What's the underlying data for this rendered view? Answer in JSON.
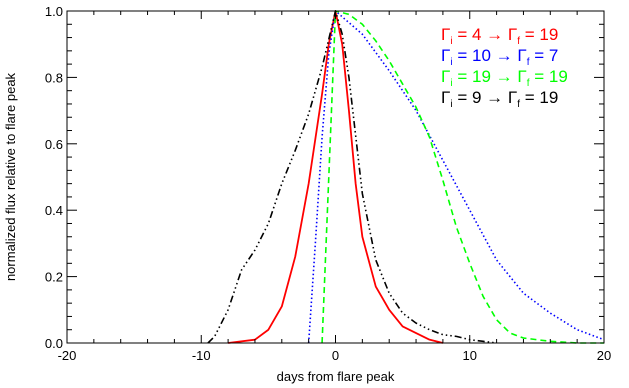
{
  "chart_data": {
    "type": "line",
    "title": "",
    "xlabel": "days from flare peak",
    "ylabel": "normalized flux relative to flare peak",
    "xlim": [
      -20,
      20
    ],
    "ylim": [
      0,
      1.0
    ],
    "x_ticks": [
      -20,
      -10,
      0,
      10,
      20
    ],
    "x_tick_labels": [
      "-20",
      "-10",
      "0",
      "10",
      "20"
    ],
    "y_ticks": [
      0,
      0.2,
      0.4,
      0.6,
      0.8,
      1.0
    ],
    "y_tick_labels": [
      "0.0",
      "0.2",
      "0.4",
      "0.6",
      "0.8",
      "1.0"
    ],
    "grid": false,
    "legend_position": "top-right",
    "series": [
      {
        "legend": {
          "gi": "4",
          "gf": "19"
        },
        "color": "#ff0000",
        "line_style": "solid",
        "points": [
          [
            -8,
            0.0
          ],
          [
            -6,
            0.01
          ],
          [
            -5,
            0.04
          ],
          [
            -4,
            0.11
          ],
          [
            -3,
            0.26
          ],
          [
            -2,
            0.48
          ],
          [
            -1,
            0.75
          ],
          [
            -0.5,
            0.9
          ],
          [
            0,
            1.0
          ],
          [
            0.5,
            0.9
          ],
          [
            1,
            0.7
          ],
          [
            1.5,
            0.48
          ],
          [
            2,
            0.32
          ],
          [
            3,
            0.17
          ],
          [
            4,
            0.1
          ],
          [
            5,
            0.05
          ],
          [
            6,
            0.03
          ],
          [
            7,
            0.01
          ],
          [
            8,
            0.0
          ]
        ]
      },
      {
        "legend": {
          "gi": "10",
          "gf": "7"
        },
        "color": "#0000ff",
        "line_style": "dotted",
        "points": [
          [
            -2,
            0.0
          ],
          [
            -1.5,
            0.3
          ],
          [
            -1,
            0.62
          ],
          [
            -0.5,
            0.87
          ],
          [
            0,
            1.0
          ],
          [
            2,
            0.93
          ],
          [
            4,
            0.82
          ],
          [
            6,
            0.7
          ],
          [
            8,
            0.55
          ],
          [
            10,
            0.4
          ],
          [
            12,
            0.25
          ],
          [
            14,
            0.15
          ],
          [
            16,
            0.09
          ],
          [
            18,
            0.04
          ],
          [
            20,
            0.01
          ]
        ]
      },
      {
        "legend": {
          "gi": "19",
          "gf": "19"
        },
        "color": "#00ff00",
        "line_style": "dashed",
        "points": [
          [
            -1,
            0.0
          ],
          [
            -0.5,
            0.5
          ],
          [
            0,
            1.0
          ],
          [
            1,
            0.99
          ],
          [
            2,
            0.96
          ],
          [
            3,
            0.91
          ],
          [
            4,
            0.85
          ],
          [
            5,
            0.78
          ],
          [
            6,
            0.71
          ],
          [
            7,
            0.62
          ],
          [
            8,
            0.49
          ],
          [
            9,
            0.35
          ],
          [
            10,
            0.24
          ],
          [
            11,
            0.14
          ],
          [
            12,
            0.07
          ],
          [
            13,
            0.03
          ],
          [
            14,
            0.015
          ],
          [
            16,
            0.005
          ],
          [
            18,
            0.0
          ],
          [
            20,
            0.0
          ]
        ]
      },
      {
        "legend": {
          "gi": "9",
          "gf": "19"
        },
        "color": "#000000",
        "line_style": "dash-dot-dot-dot",
        "points": [
          [
            -9.5,
            0.0
          ],
          [
            -9,
            0.02
          ],
          [
            -8,
            0.1
          ],
          [
            -7,
            0.22
          ],
          [
            -6,
            0.28
          ],
          [
            -5,
            0.36
          ],
          [
            -4,
            0.48
          ],
          [
            -3,
            0.58
          ],
          [
            -2,
            0.69
          ],
          [
            -1,
            0.83
          ],
          [
            0,
            1.0
          ],
          [
            0.5,
            0.93
          ],
          [
            1,
            0.8
          ],
          [
            2,
            0.45
          ],
          [
            3,
            0.25
          ],
          [
            4,
            0.15
          ],
          [
            5,
            0.09
          ],
          [
            6,
            0.06
          ],
          [
            7,
            0.04
          ],
          [
            8,
            0.025
          ],
          [
            9,
            0.02
          ],
          [
            10,
            0.01
          ],
          [
            11,
            0.005
          ],
          [
            12,
            0.0
          ]
        ]
      }
    ]
  }
}
